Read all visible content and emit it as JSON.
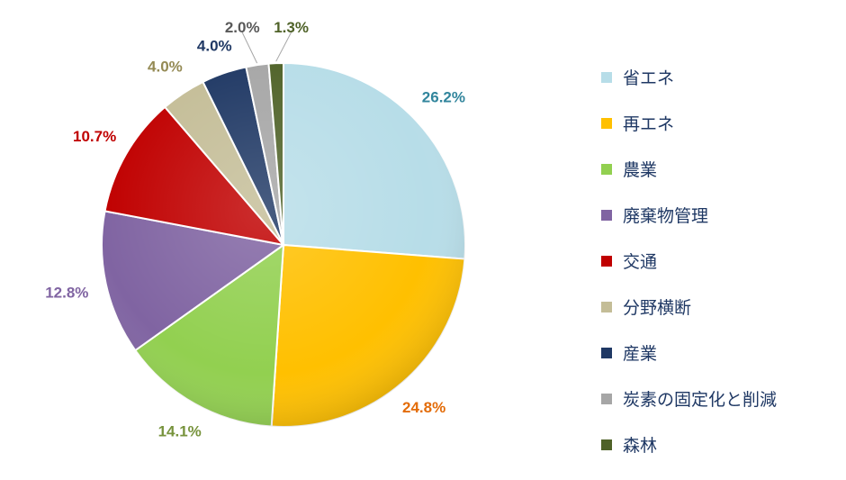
{
  "chart_data": {
    "type": "pie",
    "title": "",
    "slices": [
      {
        "name": "省エネ",
        "value": 26.2,
        "label": "26.2%",
        "color": "#b7dde8",
        "label_color": "#31859c"
      },
      {
        "name": "再エネ",
        "value": 24.8,
        "label": "24.8%",
        "color": "#ffc000",
        "label_color": "#e36c09"
      },
      {
        "name": "農業",
        "value": 14.1,
        "label": "14.1%",
        "color": "#92d050",
        "label_color": "#77933c"
      },
      {
        "name": "廃棄物管理",
        "value": 12.8,
        "label": "12.8%",
        "color": "#8064a2",
        "label_color": "#8064a2"
      },
      {
        "name": "交通",
        "value": 10.7,
        "label": "10.7%",
        "color": "#c00000",
        "label_color": "#c00000"
      },
      {
        "name": "分野横断",
        "value": 4.0,
        "label": "4.0%",
        "color": "#c4bd97",
        "label_color": "#948a54"
      },
      {
        "name": "産業",
        "value": 4.0,
        "label": "4.0%",
        "color": "#1f3864",
        "label_color": "#1f3864"
      },
      {
        "name": "炭素の固定化と削減",
        "value": 2.0,
        "label": "2.0%",
        "color": "#a6a6a6",
        "label_color": "#595959"
      },
      {
        "name": "森林",
        "value": 1.3,
        "label": "1.3%",
        "color": "#4f6228",
        "label_color": "#4f6228"
      }
    ],
    "legend_position": "right",
    "start_angle": "12 o'clock",
    "direction": "clockwise"
  }
}
